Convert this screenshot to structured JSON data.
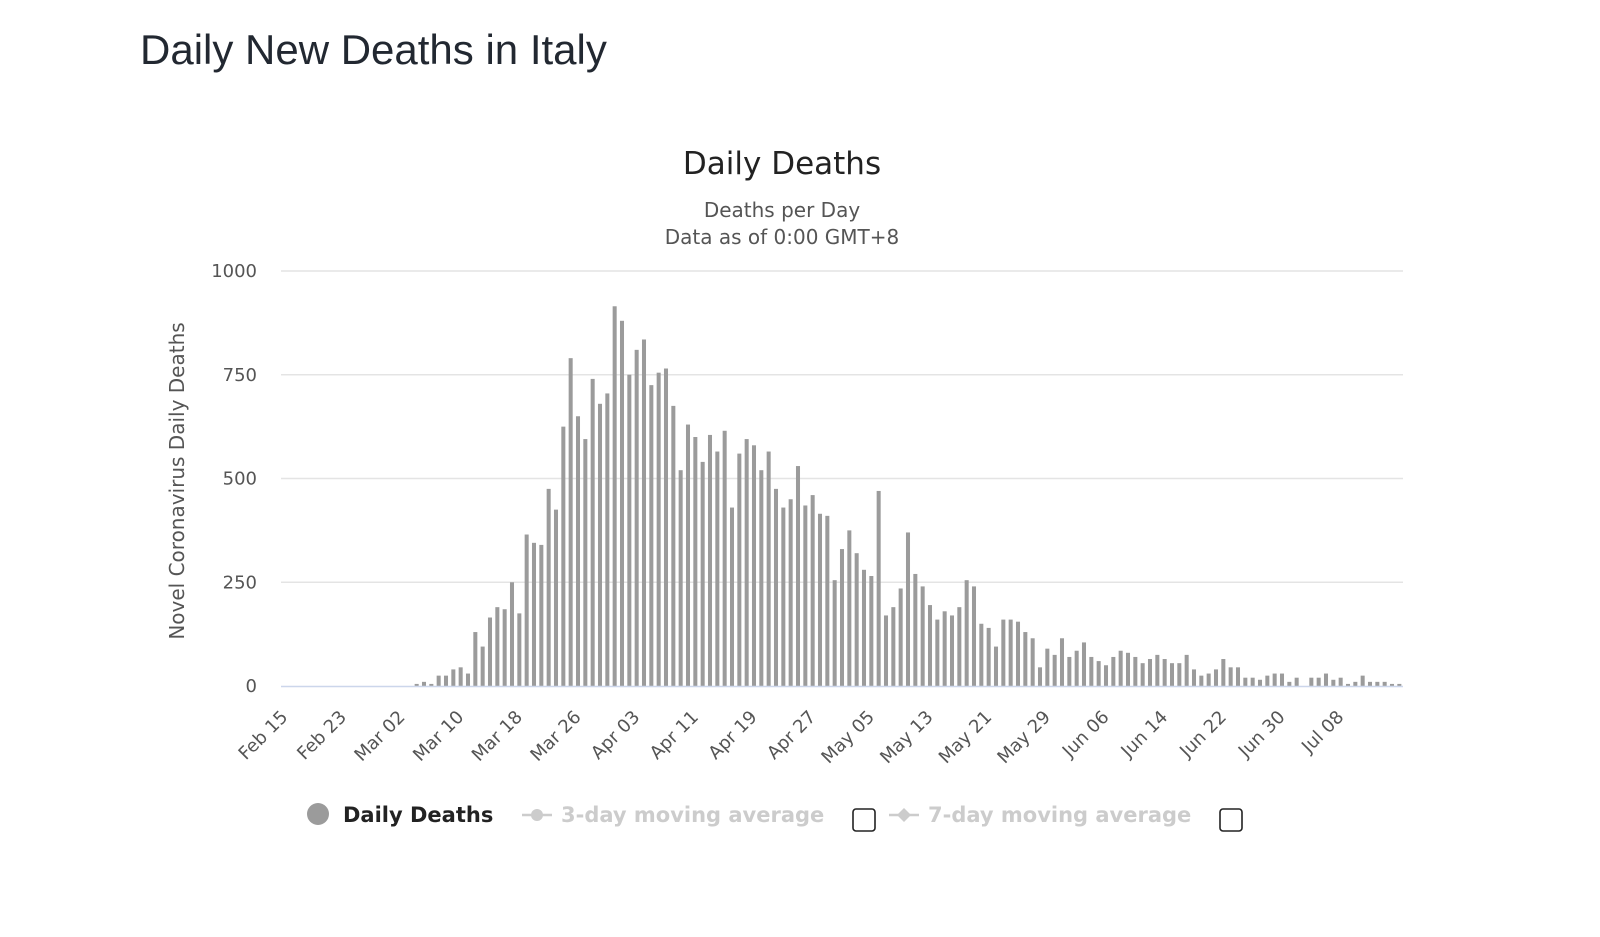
{
  "page": {
    "title": "Daily New Deaths in Italy"
  },
  "chart_data": {
    "type": "bar",
    "title": "Daily Deaths",
    "subtitle_lines": [
      "Deaths per Day",
      "Data as of 0:00 GMT+8"
    ],
    "ylabel": "Novel Coronavirus Daily Deaths",
    "ylim": [
      0,
      1000
    ],
    "y_ticks": [
      0,
      250,
      500,
      750,
      1000
    ],
    "grid": true,
    "x_tick_labels": [
      "Feb 15",
      "Feb 23",
      "Mar 02",
      "Mar 10",
      "Mar 18",
      "Mar 26",
      "Apr 03",
      "Apr 11",
      "Apr 19",
      "Apr 27",
      "May 05",
      "May 13",
      "May 21",
      "May 29",
      "Jun 06",
      "Jun 14",
      "Jun 22",
      "Jun 30",
      "Jul 08"
    ],
    "x_start": "Feb 15",
    "bar_color": "#9b9b9b",
    "series": [
      {
        "name": "Daily Deaths",
        "values": [
          0,
          0,
          0,
          0,
          0,
          0,
          0,
          0,
          0,
          0,
          0,
          0,
          0,
          0,
          0,
          0,
          0,
          0,
          5,
          10,
          5,
          25,
          25,
          40,
          45,
          30,
          130,
          95,
          165,
          190,
          185,
          250,
          175,
          365,
          345,
          340,
          475,
          425,
          625,
          790,
          650,
          595,
          740,
          680,
          705,
          915,
          880,
          750,
          810,
          835,
          725,
          755,
          765,
          675,
          520,
          630,
          600,
          540,
          605,
          565,
          615,
          430,
          560,
          595,
          580,
          520,
          565,
          475,
          430,
          450,
          530,
          435,
          460,
          415,
          410,
          255,
          330,
          375,
          320,
          280,
          265,
          470,
          170,
          190,
          235,
          370,
          270,
          240,
          195,
          160,
          180,
          170,
          190,
          255,
          240,
          150,
          140,
          95,
          160,
          160,
          155,
          130,
          115,
          45,
          90,
          75,
          115,
          70,
          85,
          105,
          70,
          60,
          50,
          70,
          85,
          80,
          70,
          55,
          65,
          75,
          65,
          55,
          55,
          75,
          40,
          25,
          30,
          40,
          65,
          45,
          45,
          20,
          20,
          15,
          25,
          30,
          30,
          10,
          20,
          0,
          20,
          20,
          30,
          15,
          20,
          5,
          10,
          25,
          10,
          10,
          10,
          5,
          5
        ]
      }
    ],
    "legend": {
      "placement": "bottom",
      "items": [
        {
          "label": "Daily Deaths",
          "active": true
        },
        {
          "label": "3-day moving average",
          "active": false
        },
        {
          "label": "7-day moving average",
          "active": false
        }
      ]
    }
  }
}
